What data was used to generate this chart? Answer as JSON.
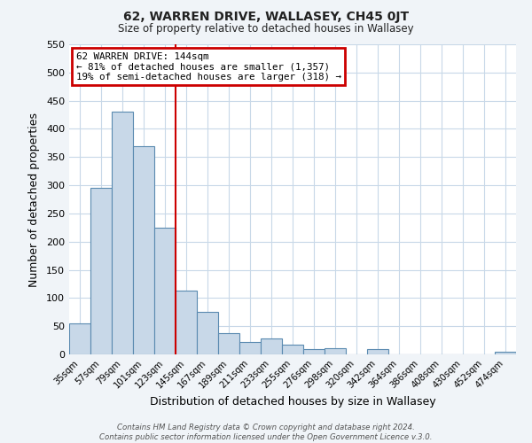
{
  "title": "62, WARREN DRIVE, WALLASEY, CH45 0JT",
  "subtitle": "Size of property relative to detached houses in Wallasey",
  "xlabel": "Distribution of detached houses by size in Wallasey",
  "ylabel": "Number of detached properties",
  "bar_labels": [
    "35sqm",
    "57sqm",
    "79sqm",
    "101sqm",
    "123sqm",
    "145sqm",
    "167sqm",
    "189sqm",
    "211sqm",
    "233sqm",
    "255sqm",
    "276sqm",
    "298sqm",
    "320sqm",
    "342sqm",
    "364sqm",
    "386sqm",
    "408sqm",
    "430sqm",
    "452sqm",
    "474sqm"
  ],
  "bar_values": [
    55,
    295,
    430,
    370,
    225,
    113,
    75,
    38,
    22,
    29,
    18,
    10,
    11,
    0,
    9,
    0,
    0,
    0,
    0,
    0,
    5
  ],
  "bar_color": "#c8d8e8",
  "bar_edge_color": "#5a8ab0",
  "vline_x": 5,
  "vline_color": "#cc0000",
  "annotation_line1": "62 WARREN DRIVE: 144sqm",
  "annotation_line2": "← 81% of detached houses are smaller (1,357)",
  "annotation_line3": "19% of semi-detached houses are larger (318) →",
  "annotation_box_color": "#cc0000",
  "ylim": [
    0,
    550
  ],
  "yticks": [
    0,
    50,
    100,
    150,
    200,
    250,
    300,
    350,
    400,
    450,
    500,
    550
  ],
  "footer_line1": "Contains HM Land Registry data © Crown copyright and database right 2024.",
  "footer_line2": "Contains public sector information licensed under the Open Government Licence v.3.0.",
  "bg_color": "#f0f4f8",
  "plot_bg_color": "#ffffff",
  "grid_color": "#c8d8e8"
}
